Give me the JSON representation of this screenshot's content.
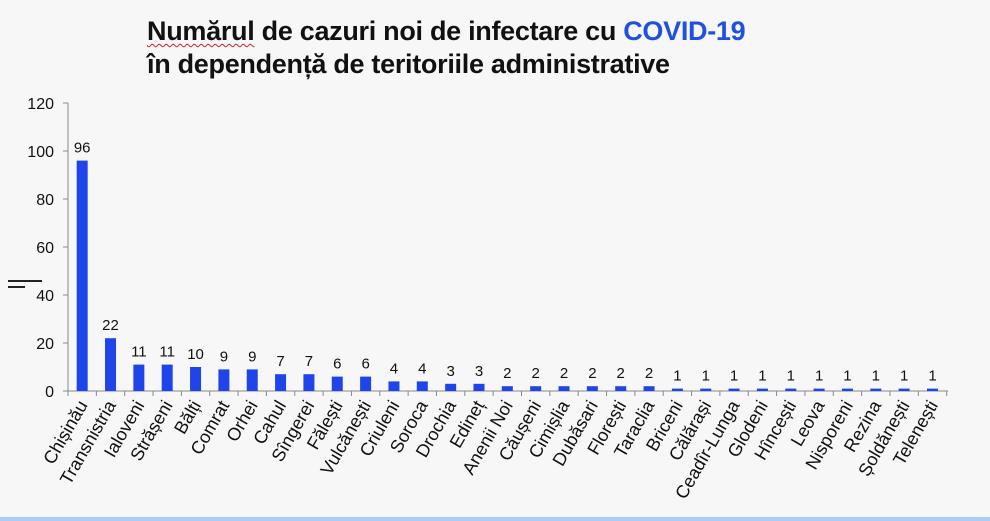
{
  "title": {
    "part1": "Numărul",
    "part2": " de cazuri noi de infectare cu ",
    "highlight": "COVID-19",
    "line2": "în dependență de teritoriile administrative"
  },
  "colors": {
    "bar": "#1f45ea",
    "highlight": "#2050e0"
  },
  "chart_data": {
    "type": "bar",
    "title": "Numărul de cazuri noi de infectare cu COVID-19 în dependență de teritoriile administrative",
    "xlabel": "",
    "ylabel": "",
    "ylim": [
      0,
      120
    ],
    "yticks": [
      0,
      20,
      40,
      60,
      80,
      100,
      120
    ],
    "categories": [
      "Chișinău",
      "Transnistria",
      "Ialoveni",
      "Strășeni",
      "Bălți",
      "Comrat",
      "Orhei",
      "Cahul",
      "Sîngerei",
      "Fălești",
      "Vulcănești",
      "Criuleni",
      "Soroca",
      "Drochia",
      "Edineț",
      "Anenii Noi",
      "Căușeni",
      "Cimișlia",
      "Dubăsari",
      "Florești",
      "Taraclia",
      "Briceni",
      "Călărași",
      "Ceadîr-Lunga",
      "Glodeni",
      "Hîncești",
      "Leova",
      "Nisporeni",
      "Rezina",
      "Șoldănești",
      "Telenești"
    ],
    "values": [
      96,
      22,
      11,
      11,
      10,
      9,
      9,
      7,
      7,
      6,
      6,
      4,
      4,
      3,
      3,
      2,
      2,
      2,
      2,
      2,
      2,
      1,
      1,
      1,
      1,
      1,
      1,
      1,
      1,
      1,
      1
    ],
    "data_labels": true,
    "grid": false
  }
}
